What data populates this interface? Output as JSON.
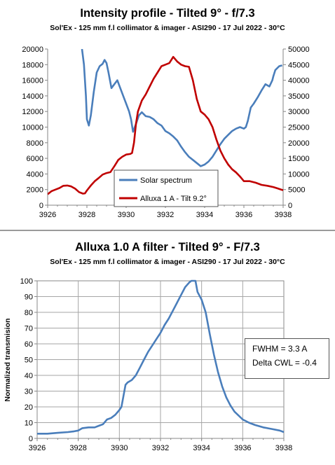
{
  "chart_data": [
    {
      "type": "line",
      "title": "Intensity profile - Tilted 9° - f/7.3",
      "subtitle": "Sol'Ex - 125 mm f.l collimator & imager - ASI290 - 17 Jul 2022 - 30°C",
      "xlabel": "",
      "ylabel": "",
      "xlim": [
        3926,
        3938
      ],
      "ylim": [
        0,
        20000
      ],
      "y2lim": [
        0,
        50000
      ],
      "x_ticks": [
        "3926",
        "3928",
        "3930",
        "3932",
        "3934",
        "3936",
        "3938"
      ],
      "y_ticks": [
        "0",
        "2000",
        "4000",
        "6000",
        "8000",
        "10000",
        "12000",
        "14000",
        "16000",
        "18000",
        "20000"
      ],
      "y2_ticks": [
        "0",
        "5000",
        "10000",
        "15000",
        "20000",
        "25000",
        "30000",
        "35000",
        "40000",
        "45000",
        "50000"
      ],
      "grid": false,
      "legend_position": "bottom-center",
      "series": [
        {
          "name": "Solar spectrum",
          "axis": "left",
          "color": "#4a7ebb",
          "x": [
            3927.75,
            3927.85,
            3927.95,
            3928.0,
            3928.1,
            3928.2,
            3928.35,
            3928.5,
            3928.65,
            3928.8,
            3928.9,
            3929.0,
            3929.1,
            3929.25,
            3929.4,
            3929.55,
            3929.7,
            3929.85,
            3930.0,
            3930.15,
            3930.25,
            3930.35,
            3930.5,
            3930.65,
            3930.8,
            3931.0,
            3931.2,
            3931.4,
            3931.6,
            3931.8,
            3932.0,
            3932.2,
            3932.4,
            3932.6,
            3932.8,
            3933.0,
            3933.2,
            3933.4,
            3933.6,
            3933.8,
            3934.0,
            3934.2,
            3934.4,
            3934.6,
            3934.8,
            3935.0,
            3935.2,
            3935.4,
            3935.6,
            3935.8,
            3936.0,
            3936.1,
            3936.2,
            3936.35,
            3936.5,
            3936.7,
            3936.9,
            3937.1,
            3937.3,
            3937.45,
            3937.5,
            3937.6,
            3937.8,
            3937.95
          ],
          "values": [
            20000,
            18000,
            14000,
            11000,
            10200,
            11500,
            14500,
            17000,
            17800,
            18100,
            18600,
            18200,
            17000,
            15000,
            15500,
            16000,
            15000,
            14000,
            13000,
            12000,
            11000,
            9400,
            10400,
            11500,
            11900,
            11400,
            11300,
            11000,
            10500,
            10200,
            9500,
            9200,
            8800,
            8300,
            7500,
            6800,
            6200,
            5800,
            5400,
            5000,
            5200,
            5600,
            6200,
            7000,
            7800,
            8500,
            9000,
            9500,
            9800,
            10000,
            9800,
            10000,
            10800,
            12500,
            13000,
            13800,
            14700,
            15500,
            15200,
            16000,
            16500,
            17300,
            17800,
            17900
          ]
        },
        {
          "name": "Alluxa 1 A - Tilt 9.2°",
          "axis": "right",
          "color": "#c00000",
          "x": [
            3926.0,
            3926.2,
            3926.4,
            3926.6,
            3926.8,
            3927.0,
            3927.2,
            3927.4,
            3927.6,
            3927.8,
            3927.9,
            3928.0,
            3928.2,
            3928.4,
            3928.6,
            3928.8,
            3929.0,
            3929.2,
            3929.4,
            3929.6,
            3929.8,
            3930.0,
            3930.2,
            3930.3,
            3930.4,
            3930.5,
            3930.6,
            3930.8,
            3931.0,
            3931.2,
            3931.4,
            3931.6,
            3931.8,
            3932.0,
            3932.2,
            3932.4,
            3932.6,
            3932.8,
            3933.0,
            3933.2,
            3933.4,
            3933.6,
            3933.8,
            3934.0,
            3934.2,
            3934.4,
            3934.6,
            3934.8,
            3935.0,
            3935.2,
            3935.4,
            3935.6,
            3935.8,
            3936.0,
            3936.3,
            3936.6,
            3936.9,
            3937.2,
            3937.5,
            3937.7,
            3937.9,
            3938.0
          ],
          "values": [
            3500,
            4500,
            5000,
            5500,
            6200,
            6300,
            6000,
            5300,
            4200,
            3700,
            3800,
            4700,
            6300,
            7700,
            8700,
            9800,
            10300,
            10600,
            12500,
            14500,
            15500,
            16200,
            16400,
            16700,
            20000,
            26000,
            30000,
            33500,
            35500,
            38000,
            40500,
            42500,
            44500,
            45000,
            45500,
            47500,
            46000,
            45000,
            44500,
            44300,
            40000,
            34000,
            30000,
            29000,
            27500,
            25000,
            21000,
            17500,
            15000,
            13000,
            11500,
            10500,
            9200,
            7700,
            7700,
            7200,
            6500,
            6200,
            5800,
            5400,
            5000,
            4800
          ]
        }
      ]
    },
    {
      "type": "line",
      "title": "Alluxa 1.0 A filter - Tilted 9° - F/7.3",
      "subtitle": "Sol'Ex - 125 mm f.l collimator & imager - ASI290 - 17 Jul 2022 - 30°C",
      "xlabel": "",
      "ylabel": "Normalized transmision",
      "xlim": [
        3926,
        3938
      ],
      "ylim": [
        0,
        100
      ],
      "x_ticks": [
        "3926",
        "3928",
        "3930",
        "3932",
        "3934",
        "3936",
        "3938"
      ],
      "y_ticks": [
        "0",
        "10",
        "20",
        "30",
        "40",
        "50",
        "60",
        "70",
        "80",
        "90",
        "100"
      ],
      "grid": true,
      "annotation": [
        "FWHM = 3.3 A",
        "Delta CWL = -0.4"
      ],
      "series": [
        {
          "name": "",
          "color": "#4a7ebb",
          "x": [
            3926.0,
            3926.5,
            3927.0,
            3927.5,
            3927.8,
            3928.0,
            3928.2,
            3928.5,
            3928.8,
            3929.0,
            3929.2,
            3929.4,
            3929.6,
            3929.8,
            3930.0,
            3930.1,
            3930.2,
            3930.3,
            3930.4,
            3930.6,
            3930.8,
            3931.0,
            3931.2,
            3931.4,
            3931.6,
            3931.8,
            3932.0,
            3932.2,
            3932.4,
            3932.6,
            3932.8,
            3933.0,
            3933.2,
            3933.4,
            3933.5,
            3933.6,
            3933.7,
            3933.8,
            3934.0,
            3934.2,
            3934.4,
            3934.6,
            3934.8,
            3935.0,
            3935.2,
            3935.4,
            3935.6,
            3935.8,
            3936.0,
            3936.3,
            3936.6,
            3937.0,
            3937.4,
            3937.8,
            3938.0
          ],
          "values": [
            3,
            3,
            3.5,
            4,
            4.5,
            5,
            6.5,
            7,
            7,
            8,
            9,
            12,
            13,
            15,
            18,
            20,
            27,
            34,
            35.5,
            37,
            40,
            45,
            50,
            55,
            59,
            63,
            67,
            72,
            76,
            81,
            86,
            91,
            96,
            99,
            100,
            100,
            100,
            93,
            88,
            80,
            66,
            53,
            42,
            33,
            26,
            21,
            17,
            14.5,
            12,
            10,
            8.5,
            7,
            6,
            5,
            4
          ]
        }
      ]
    }
  ]
}
